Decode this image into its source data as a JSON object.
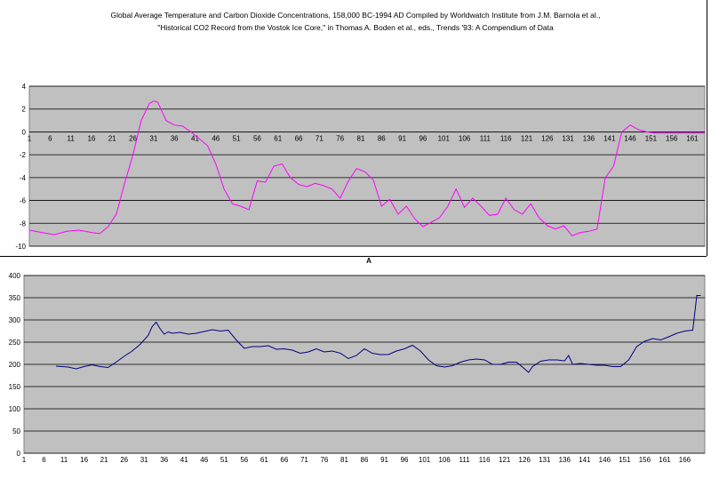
{
  "figure": {
    "title_lines": [
      "Global Average Temperature and Carbon Dioxide Concentrations, 158,000 BC-1994 AD Compiled by Worldwatch Institute from J.M. Barnola et al.,",
      "\"Historical CO2 Record from the Vostok Ice Core,\" in Thomas A. Boden et al., eds., Trends '93: A Compendium of Data"
    ],
    "mid_label": "A"
  },
  "colors": {
    "plot_bg": "#c0c0c0",
    "gridline": "#000000",
    "temperature_line": "#ff00ff",
    "co2_line": "#000080"
  },
  "chart_data": [
    {
      "type": "line",
      "title": "",
      "xlabel": "",
      "ylabel": "",
      "x_range": [
        1,
        164
      ],
      "xticks": [
        1,
        6,
        11,
        16,
        21,
        26,
        31,
        36,
        41,
        46,
        51,
        56,
        61,
        66,
        71,
        76,
        81,
        86,
        91,
        96,
        101,
        106,
        111,
        116,
        121,
        126,
        131,
        136,
        141,
        146,
        151,
        156,
        161
      ],
      "ylim": [
        -10,
        4
      ],
      "yticks": [
        4,
        2,
        0,
        -2,
        -4,
        -6,
        -8,
        -10
      ],
      "grid": true,
      "series": [
        {
          "x": [
            1,
            4,
            7,
            10,
            13,
            16,
            18,
            20,
            22,
            24,
            26,
            28,
            30,
            31,
            32,
            34,
            36,
            38,
            40,
            42,
            44,
            46,
            48,
            50,
            52,
            54,
            56,
            58,
            60,
            62,
            64,
            66,
            68,
            70,
            72,
            74,
            76,
            78,
            80,
            82,
            84,
            86,
            88,
            90,
            92,
            94,
            96,
            98,
            100,
            102,
            104,
            106,
            108,
            110,
            112,
            114,
            116,
            118,
            120,
            122,
            124,
            126,
            128,
            130,
            132,
            134,
            136,
            138,
            140,
            142,
            144,
            146,
            148,
            150,
            152,
            153,
            155,
            157,
            159,
            161,
            164
          ],
          "values": [
            -8.6,
            -8.8,
            -9.0,
            -8.7,
            -8.6,
            -8.8,
            -8.9,
            -8.3,
            -7.2,
            -4.5,
            -2.0,
            1.0,
            2.5,
            2.7,
            2.6,
            1.0,
            0.6,
            0.5,
            0.0,
            -0.6,
            -1.2,
            -2.8,
            -5.0,
            -6.3,
            -6.5,
            -6.8,
            -4.3,
            -4.4,
            -3.0,
            -2.8,
            -4.0,
            -4.6,
            -4.8,
            -4.5,
            -4.7,
            -5.0,
            -5.8,
            -4.3,
            -3.2,
            -3.5,
            -4.2,
            -6.5,
            -5.9,
            -7.2,
            -6.5,
            -7.6,
            -8.3,
            -7.9,
            -7.5,
            -6.5,
            -5.0,
            -6.6,
            -5.8,
            -6.5,
            -7.3,
            -7.2,
            -5.8,
            -6.8,
            -7.2,
            -6.3,
            -7.5,
            -8.2,
            -8.5,
            -8.2,
            -9.1,
            -8.8,
            -8.7,
            -8.5,
            -4.0,
            -3.0,
            0.0,
            0.6,
            0.2,
            0.0,
            -0.1,
            -0.1,
            -0.1,
            -0.1,
            -0.1,
            -0.1,
            -0.1
          ]
        }
      ]
    },
    {
      "type": "line",
      "title": "",
      "xlabel": "",
      "ylabel": "",
      "x_range": [
        1,
        171
      ],
      "xticks": [
        1,
        6,
        11,
        16,
        21,
        26,
        31,
        36,
        41,
        46,
        51,
        56,
        61,
        66,
        71,
        76,
        81,
        86,
        91,
        96,
        101,
        106,
        111,
        116,
        121,
        126,
        131,
        136,
        141,
        146,
        151,
        156,
        161,
        166
      ],
      "ylim": [
        0,
        400
      ],
      "yticks": [
        400,
        350,
        300,
        250,
        200,
        150,
        100,
        50,
        0
      ],
      "grid": true,
      "series": [
        {
          "x": [
            9,
            12,
            14,
            16,
            18,
            20,
            22,
            24,
            26,
            28,
            30,
            32,
            33,
            34,
            35,
            36,
            37,
            38,
            40,
            42,
            44,
            46,
            48,
            50,
            52,
            54,
            56,
            58,
            60,
            62,
            64,
            66,
            68,
            70,
            72,
            74,
            76,
            78,
            80,
            82,
            84,
            86,
            88,
            90,
            92,
            94,
            96,
            98,
            100,
            102,
            104,
            106,
            108,
            110,
            112,
            114,
            116,
            118,
            120,
            122,
            124,
            126,
            127,
            128,
            130,
            132,
            134,
            136,
            137,
            138,
            140,
            142,
            144,
            146,
            148,
            150,
            152,
            154,
            156,
            158,
            160,
            162,
            164,
            166,
            168,
            169,
            170
          ],
          "values": [
            196,
            194,
            190,
            195,
            199,
            195,
            193,
            205,
            218,
            230,
            245,
            265,
            285,
            295,
            280,
            268,
            273,
            270,
            272,
            268,
            270,
            274,
            278,
            275,
            277,
            255,
            236,
            240,
            240,
            242,
            234,
            235,
            232,
            225,
            228,
            235,
            228,
            230,
            225,
            213,
            220,
            235,
            225,
            222,
            222,
            230,
            235,
            243,
            230,
            210,
            197,
            194,
            197,
            205,
            210,
            212,
            210,
            200,
            200,
            205,
            205,
            190,
            182,
            195,
            207,
            210,
            210,
            208,
            220,
            200,
            202,
            200,
            198,
            198,
            195,
            195,
            210,
            240,
            252,
            258,
            255,
            262,
            270,
            275,
            277,
            355,
            355
          ]
        }
      ]
    }
  ]
}
